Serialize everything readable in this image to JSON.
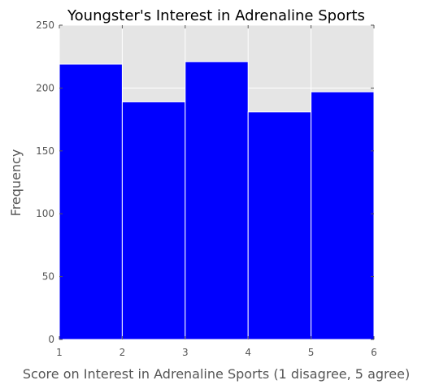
{
  "chart_data": {
    "type": "bar",
    "title": "Youngster's Interest in Adrenaline Sports",
    "xlabel": "Score on Interest in Adrenaline Sports (1 disagree, 5 agree)",
    "ylabel": "Frequency",
    "bins": [
      [
        1,
        2
      ],
      [
        2,
        3
      ],
      [
        3,
        4
      ],
      [
        4,
        5
      ],
      [
        5,
        6
      ]
    ],
    "values": [
      219,
      189,
      221,
      181,
      197
    ],
    "xlim": [
      1,
      6
    ],
    "ylim": [
      0,
      250
    ],
    "xticks": [
      "1",
      "2",
      "3",
      "4",
      "5",
      "6"
    ],
    "yticks": [
      "0",
      "50",
      "100",
      "150",
      "200",
      "250"
    ],
    "grid": true,
    "bar_color": "#0000ff",
    "background_color": "#e5e5e5",
    "grid_color": "#ffffff"
  }
}
